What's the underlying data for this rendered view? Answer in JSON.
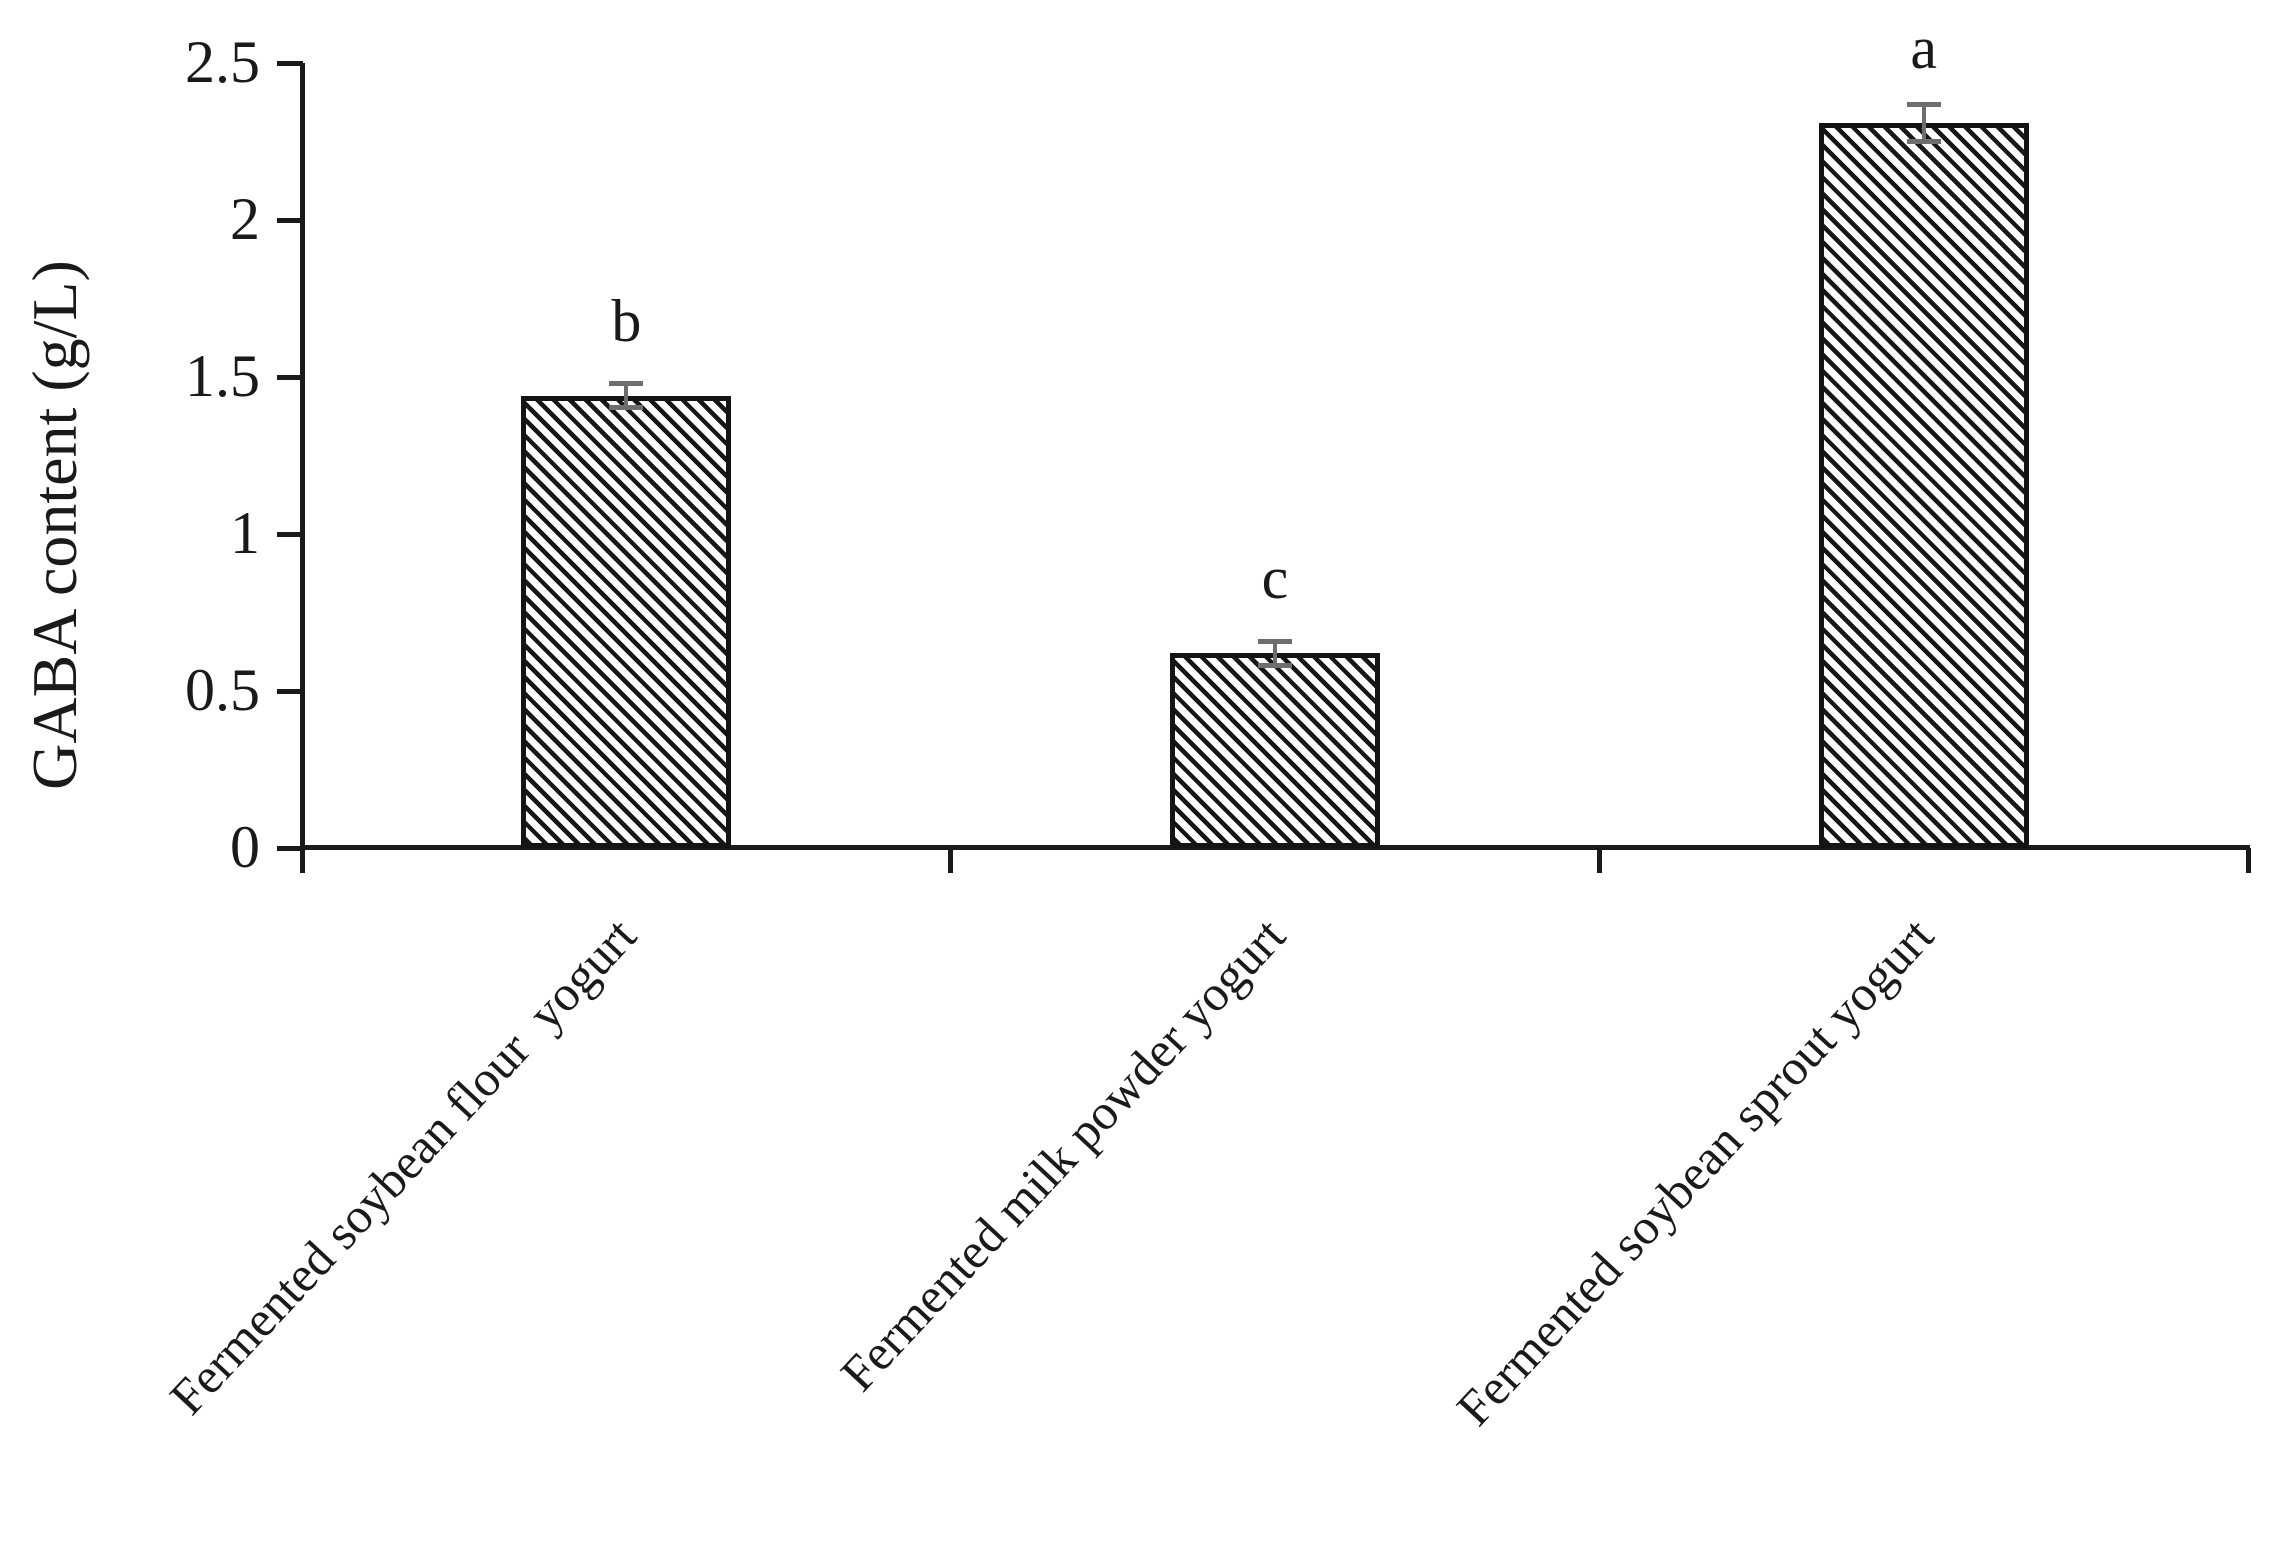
{
  "figure": {
    "background": "#ffffff",
    "description": "Bar chart of GABA content in three fermented yogurt types with error bars and significance letters"
  },
  "colors": {
    "axis": "#1a1a1a",
    "hatch_line": "#161616",
    "bar_background": "#ffffff",
    "error_bar": "#6e6e6e",
    "text": "#1a1a1a"
  },
  "chart_data": {
    "type": "bar",
    "title": "",
    "xlabel": "",
    "ylabel": "GABA content (g/L)",
    "ylim": [
      0,
      2.5
    ],
    "yticks": [
      0,
      0.5,
      1,
      1.5,
      2,
      2.5
    ],
    "ytick_labels": [
      "0",
      "0.5",
      "1",
      "1.5",
      "2",
      "2.5"
    ],
    "grid": false,
    "legend": "none",
    "bar_fill": "black diagonal hatch (backslash direction) on white",
    "categories": [
      "Fermented soybean flour  yogurt",
      "Fermented milk powder yogurt",
      "Fermented soybean sprout yogurt"
    ],
    "series": [
      {
        "name": "GABA content (g/L)",
        "values": [
          1.44,
          0.62,
          2.31
        ],
        "errors": [
          0.04,
          0.04,
          0.06
        ],
        "significance_letters": [
          "b",
          "c",
          "a"
        ]
      }
    ]
  }
}
